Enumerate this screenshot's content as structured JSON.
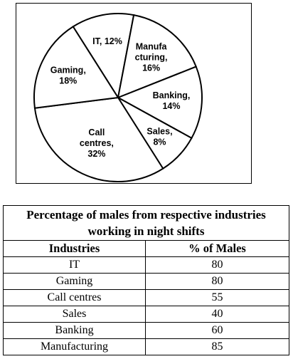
{
  "chart_data": [
    {
      "type": "pie",
      "categories": [
        "IT",
        "Manufacturing",
        "Banking",
        "Sales",
        "Call centres",
        "Gaming"
      ],
      "values": [
        12,
        16,
        14,
        8,
        32,
        18
      ],
      "slice_labels": [
        [
          "IT, 12%"
        ],
        [
          "Manufa",
          "cturing,",
          "16%"
        ],
        [
          "Banking,",
          "14%"
        ],
        [
          "Sales,",
          "8%"
        ],
        [
          "Call",
          "centres,",
          "32%"
        ],
        [
          "Gaming,",
          "18%"
        ]
      ],
      "unit": "%"
    },
    {
      "type": "table",
      "title": "Percentage of males from respective industries working in night shifts",
      "columns": [
        "Industries",
        "% of Males"
      ],
      "rows": [
        [
          "IT",
          "80"
        ],
        [
          "Gaming",
          "80"
        ],
        [
          "Call centres",
          "55"
        ],
        [
          "Sales",
          "40"
        ],
        [
          "Banking",
          "60"
        ],
        [
          "Manufacturing",
          "85"
        ]
      ]
    }
  ]
}
